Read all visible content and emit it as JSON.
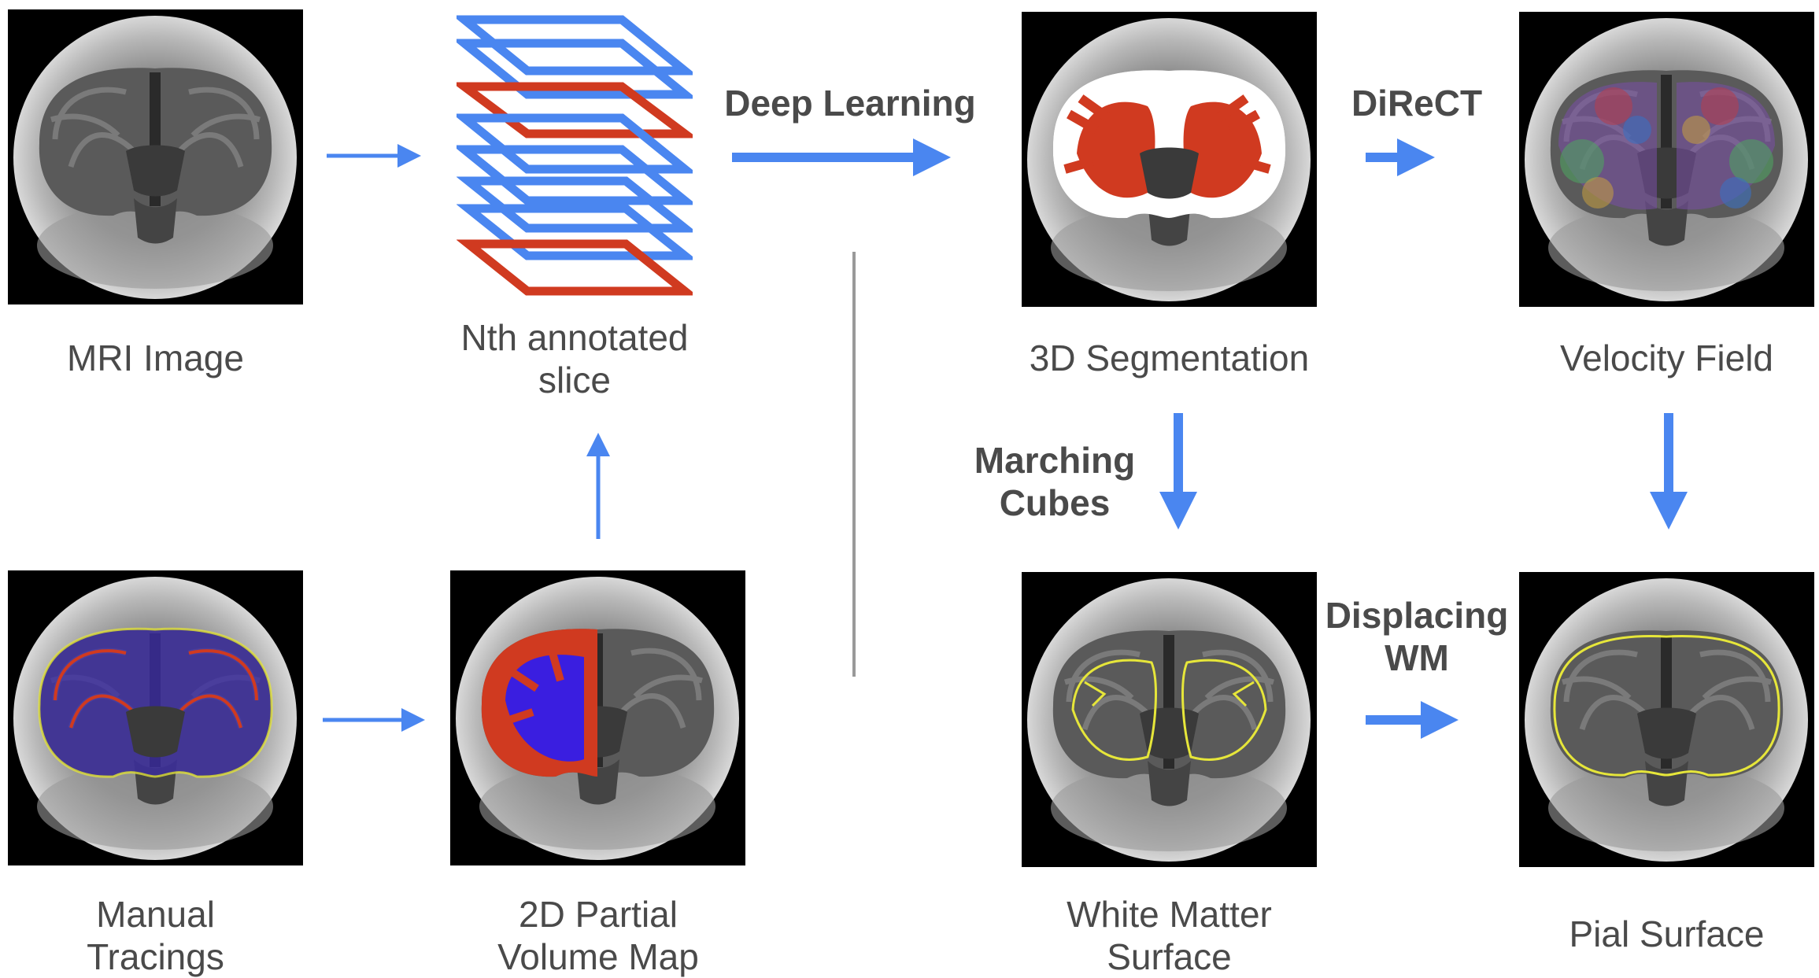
{
  "nodes": {
    "mri_image": "MRI Image",
    "annotated_slice": "Nth annotated\nslice",
    "segmentation_3d": "3D Segmentation",
    "velocity_field": "Velocity Field",
    "manual_tracings": "Manual\nTracings",
    "partial_volume_map": "2D Partial\nVolume Map",
    "white_matter_surface": "White Matter\nSurface",
    "pial_surface": "Pial Surface"
  },
  "methods": {
    "deep_learning": "Deep Learning",
    "direct": "DiReCT",
    "marching_cubes": "Marching\nCubes",
    "displacing_wm": "Displacing\nWM"
  },
  "colors": {
    "arrow": "#4a86f0",
    "annotation_red": "#d03a20",
    "partial_volume_blue": "#3a1ee0",
    "surface_yellow": "#e6e63a",
    "divider": "#999999",
    "text": "#4a4a4a"
  }
}
